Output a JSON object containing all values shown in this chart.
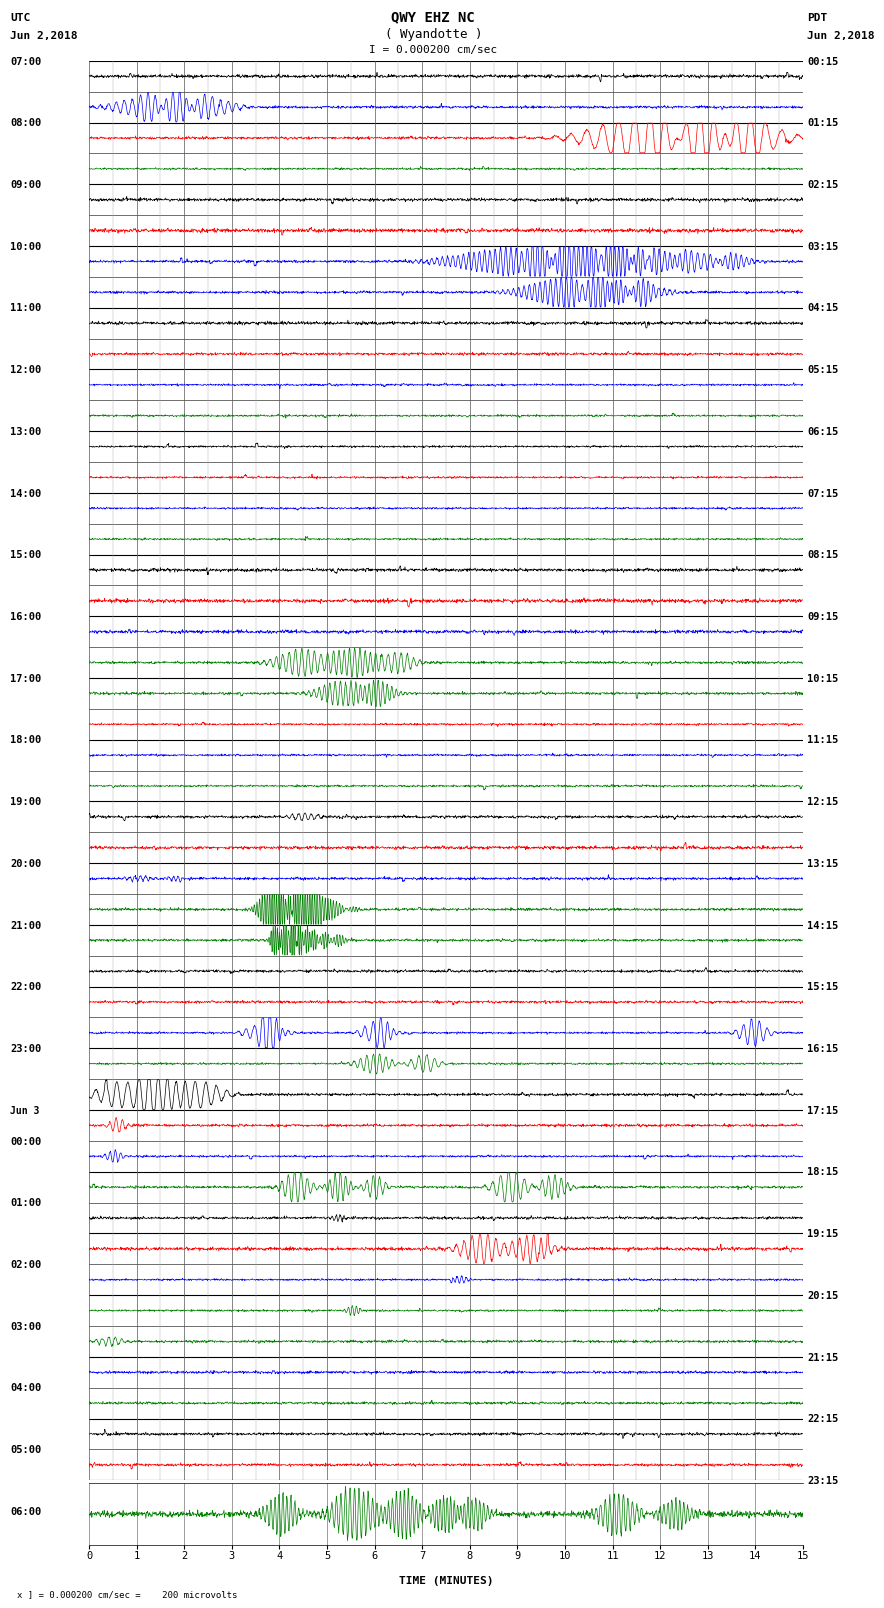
{
  "title_line1": "QWY EHZ NC",
  "title_line2": "( Wyandotte )",
  "title_scale": "I = 0.000200 cm/sec",
  "left_label_top": "UTC",
  "left_label_date": "Jun 2,2018",
  "right_label_top": "PDT",
  "right_label_date": "Jun 2,2018",
  "bottom_label": "TIME (MINUTES)",
  "bottom_note": "x ] = 0.000200 cm/sec =    200 microvolts",
  "utc_labels": [
    "07:00",
    "",
    "08:00",
    "",
    "09:00",
    "",
    "10:00",
    "",
    "11:00",
    "",
    "12:00",
    "",
    "13:00",
    "",
    "14:00",
    "",
    "15:00",
    "",
    "16:00",
    "",
    "17:00",
    "",
    "18:00",
    "",
    "19:00",
    "",
    "20:00",
    "",
    "21:00",
    "",
    "22:00",
    "",
    "23:00",
    "",
    "Jun 3",
    "00:00",
    "",
    "01:00",
    "",
    "02:00",
    "",
    "03:00",
    "",
    "04:00",
    "",
    "05:00",
    "",
    "06:00",
    ""
  ],
  "pdt_labels": [
    "00:15",
    "01:15",
    "02:15",
    "03:15",
    "04:15",
    "05:15",
    "06:15",
    "07:15",
    "08:15",
    "09:15",
    "10:15",
    "11:15",
    "12:15",
    "13:15",
    "14:15",
    "15:15",
    "16:15",
    "17:15",
    "18:15",
    "19:15",
    "20:15",
    "21:15",
    "22:15",
    "23:15"
  ],
  "n_rows": 46,
  "minutes_per_row": 15,
  "fig_width": 8.5,
  "fig_height": 16.13,
  "bg_color": "#ffffff",
  "grid_major_color": "#000000",
  "grid_minor_color": "#888888",
  "trace_colors": [
    "#000000",
    "#ff0000",
    "#0000ff",
    "#008000"
  ],
  "seed": 42
}
